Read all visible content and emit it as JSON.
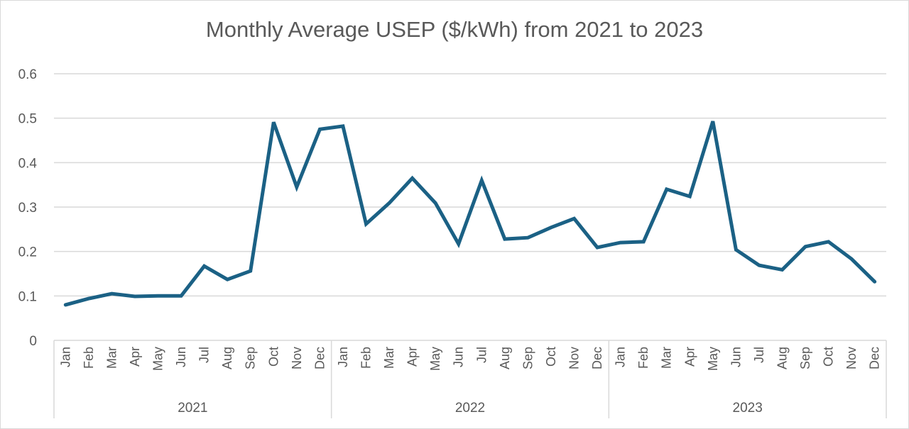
{
  "chart_data": {
    "type": "line",
    "title": "Monthly Average USEP ($/kWh) from 2021 to 2023",
    "xlabel": "",
    "ylabel": "",
    "ylim": [
      0,
      0.6
    ],
    "yticks": [
      "0",
      "0.1",
      "0.2",
      "0.3",
      "0.4",
      "0.5",
      "0.6"
    ],
    "grid": true,
    "legend": "none",
    "groups": [
      {
        "label": "2021",
        "categories": [
          "Jan",
          "Feb",
          "Mar",
          "Apr",
          "May",
          "Jun",
          "Jul",
          "Aug",
          "Sep",
          "Oct",
          "Nov",
          "Dec"
        ]
      },
      {
        "label": "2022",
        "categories": [
          "Jan",
          "Feb",
          "Mar",
          "Apr",
          "May",
          "Jun",
          "Jul",
          "Aug",
          "Sep",
          "Oct",
          "Nov",
          "Dec"
        ]
      },
      {
        "label": "2023",
        "categories": [
          "Jan",
          "Feb",
          "Mar",
          "Apr",
          "May",
          "Jun",
          "Jul",
          "Aug",
          "Sep",
          "Oct",
          "Nov",
          "Dec"
        ]
      }
    ],
    "series": [
      {
        "name": "Monthly Average USEP",
        "color": "#1b6185",
        "values": [
          0.08,
          0.094,
          0.105,
          0.099,
          0.1,
          0.1,
          0.167,
          0.137,
          0.156,
          0.491,
          0.345,
          0.475,
          0.482,
          0.262,
          0.309,
          0.365,
          0.309,
          0.217,
          0.36,
          0.228,
          0.231,
          0.254,
          0.274,
          0.209,
          0.22,
          0.222,
          0.34,
          0.324,
          0.493,
          0.204,
          0.169,
          0.159,
          0.211,
          0.222,
          0.183,
          0.132
        ]
      }
    ]
  },
  "colors": {
    "line": "#1b6185",
    "grid": "#d9d9d9",
    "text": "#595959"
  }
}
